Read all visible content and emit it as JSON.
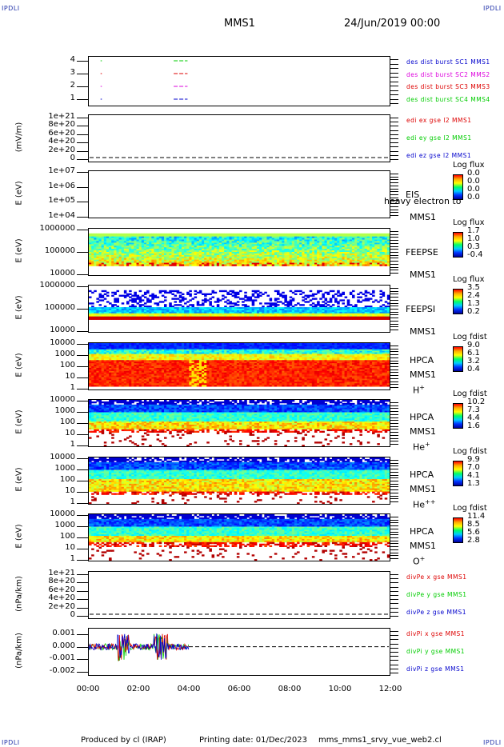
{
  "header": {
    "corner_label": "IPDLI",
    "spacecraft": "MMS1",
    "date_time": "24/Jun/2019 00:00"
  },
  "footer": {
    "produced_by": "Produced by cl (IRAP)",
    "printing_date": "Printing date: 01/Dec/2023",
    "script_name": "mms_mms1_srvy_vue_web2.cl"
  },
  "x_axis": {
    "ticks": [
      "00:00",
      "02:00",
      "04:00",
      "06:00",
      "08:00",
      "10:00",
      "12:00"
    ]
  },
  "colors": {
    "blue": "#0000cc",
    "magenta": "#dd00dd",
    "red": "#dd0000",
    "green": "#00cc00"
  },
  "chart_data": [
    {
      "type": "line",
      "panel": "burst",
      "y_ticks": [
        "4",
        "3",
        "2",
        "1"
      ],
      "ylim": [
        0.5,
        4.5
      ],
      "legend": [
        {
          "label": "des dist burst SC1 MMS1",
          "color": "#0000cc"
        },
        {
          "label": "des dist burst SC2 MMS2",
          "color": "#dd00dd"
        },
        {
          "label": "des dist burst SC3 MMS3",
          "color": "#dd0000"
        },
        {
          "label": "des dist burst SC4 MMS4",
          "color": "#00cc00"
        }
      ],
      "series": [
        {
          "name": "des dist burst SC4 MMS4",
          "y": 4,
          "color": "#00cc00",
          "segments": [
            [
              0.5,
              0.55
            ],
            [
              3.4,
              3.95
            ]
          ]
        },
        {
          "name": "des dist burst SC3 MMS3",
          "y": 3,
          "color": "#dd0000",
          "segments": [
            [
              0.5,
              0.55
            ],
            [
              3.4,
              3.95
            ]
          ]
        },
        {
          "name": "des dist burst SC2 MMS2",
          "y": 2,
          "color": "#dd00dd",
          "segments": [
            [
              0.5,
              0.55
            ],
            [
              3.4,
              3.95
            ]
          ]
        },
        {
          "name": "des dist burst SC1 MMS1",
          "y": 1,
          "color": "#0000cc",
          "segments": [
            [
              0.5,
              0.55
            ],
            [
              3.4,
              3.95
            ]
          ]
        }
      ]
    },
    {
      "type": "line",
      "panel": "edi",
      "ylabel": "(mV/m)",
      "y_ticks": [
        "1e+21",
        "8e+20",
        "6e+20",
        "4e+20",
        "2e+20",
        "0"
      ],
      "legend": [
        {
          "label": "edi ex gse l2 MMS1",
          "color": "#dd0000"
        },
        {
          "label": "edi ey gse l2 MMS1",
          "color": "#00cc00"
        },
        {
          "label": "edi ez gse l2 MMS1",
          "color": "#0000cc"
        }
      ]
    },
    {
      "type": "heatmap",
      "panel": "eis",
      "ylabel": "E (eV)",
      "y_ticks": [
        "1e+07",
        "1e+06",
        "1e+05",
        "1e+04"
      ],
      "instrument": "EIS",
      "overlay_text": "heavy electron to",
      "spacecraft": "MMS1",
      "colorbar_title": "Log flux",
      "colorbar_values": [
        "0.0",
        "0.0",
        "0.0",
        "0.0"
      ]
    },
    {
      "type": "heatmap",
      "panel": "feepse",
      "ylabel": "E (eV)",
      "y_ticks": [
        "1000000",
        "100000",
        "10000"
      ],
      "instrument": "FEEPSE",
      "spacecraft": "MMS1",
      "colorbar_title": "Log flux",
      "colorbar_values": [
        "1.7",
        "1.0",
        "0.3",
        "-0.4"
      ]
    },
    {
      "type": "heatmap",
      "panel": "feepsi",
      "ylabel": "E (eV)",
      "y_ticks": [
        "1000000",
        "100000",
        "10000"
      ],
      "instrument": "FEEPSI",
      "spacecraft": "MMS1",
      "colorbar_title": "Log flux",
      "colorbar_values": [
        "3.5",
        "2.4",
        "1.3",
        "0.2"
      ]
    },
    {
      "type": "heatmap",
      "panel": "hpca_h",
      "ylabel": "E (eV)",
      "y_ticks": [
        "10000",
        "1000",
        "100",
        "10",
        "1"
      ],
      "instrument": "HPCA",
      "spacecraft": "MMS1",
      "species": "H",
      "species_sup": "+",
      "colorbar_title": "Log fdist",
      "colorbar_values": [
        "9.0",
        "6.1",
        "3.2",
        "0.4"
      ]
    },
    {
      "type": "heatmap",
      "panel": "hpca_he",
      "ylabel": "E (eV)",
      "y_ticks": [
        "10000",
        "1000",
        "100",
        "10",
        "1"
      ],
      "instrument": "HPCA",
      "spacecraft": "MMS1",
      "species": "He",
      "species_sup": "+",
      "colorbar_title": "Log fdist",
      "colorbar_values": [
        "10.2",
        "7.3",
        "4.4",
        "1.6"
      ]
    },
    {
      "type": "heatmap",
      "panel": "hpca_hepp",
      "ylabel": "E (eV)",
      "y_ticks": [
        "10000",
        "1000",
        "100",
        "10",
        "1"
      ],
      "instrument": "HPCA",
      "spacecraft": "MMS1",
      "species": "He",
      "species_sup": "++",
      "colorbar_title": "Log fdist",
      "colorbar_values": [
        "9.9",
        "7.0",
        "4.1",
        "1.3"
      ]
    },
    {
      "type": "heatmap",
      "panel": "hpca_o",
      "ylabel": "E (eV)",
      "y_ticks": [
        "10000",
        "1000",
        "100",
        "10",
        "1"
      ],
      "instrument": "HPCA",
      "spacecraft": "MMS1",
      "species": "O",
      "species_sup": "+",
      "colorbar_title": "Log fdist",
      "colorbar_values": [
        "11.4",
        "8.5",
        "5.6",
        "2.8"
      ]
    },
    {
      "type": "line",
      "panel": "divpe",
      "ylabel": "(nPa/km)",
      "y_ticks": [
        "1e+21",
        "8e+20",
        "6e+20",
        "4e+20",
        "2e+20",
        "0"
      ],
      "legend": [
        {
          "label": "divPe x gse MMS1",
          "color": "#dd0000"
        },
        {
          "label": "divPe y gse MMS1",
          "color": "#00cc00"
        },
        {
          "label": "divPe z gse MMS1",
          "color": "#0000cc"
        }
      ]
    },
    {
      "type": "line",
      "panel": "divpi",
      "ylabel": "(nPa/km)",
      "y_ticks": [
        "0.001",
        "0.000",
        "-0.001",
        "-0.002"
      ],
      "ylim": [
        -0.0023,
        0.0015
      ],
      "x_data_end": "04:00",
      "legend": [
        {
          "label": "divPi x gse MMS1",
          "color": "#dd0000"
        },
        {
          "label": "divPi y gse MMS1",
          "color": "#00cc00"
        },
        {
          "label": "divPi z gse MMS1",
          "color": "#0000cc"
        }
      ]
    }
  ]
}
